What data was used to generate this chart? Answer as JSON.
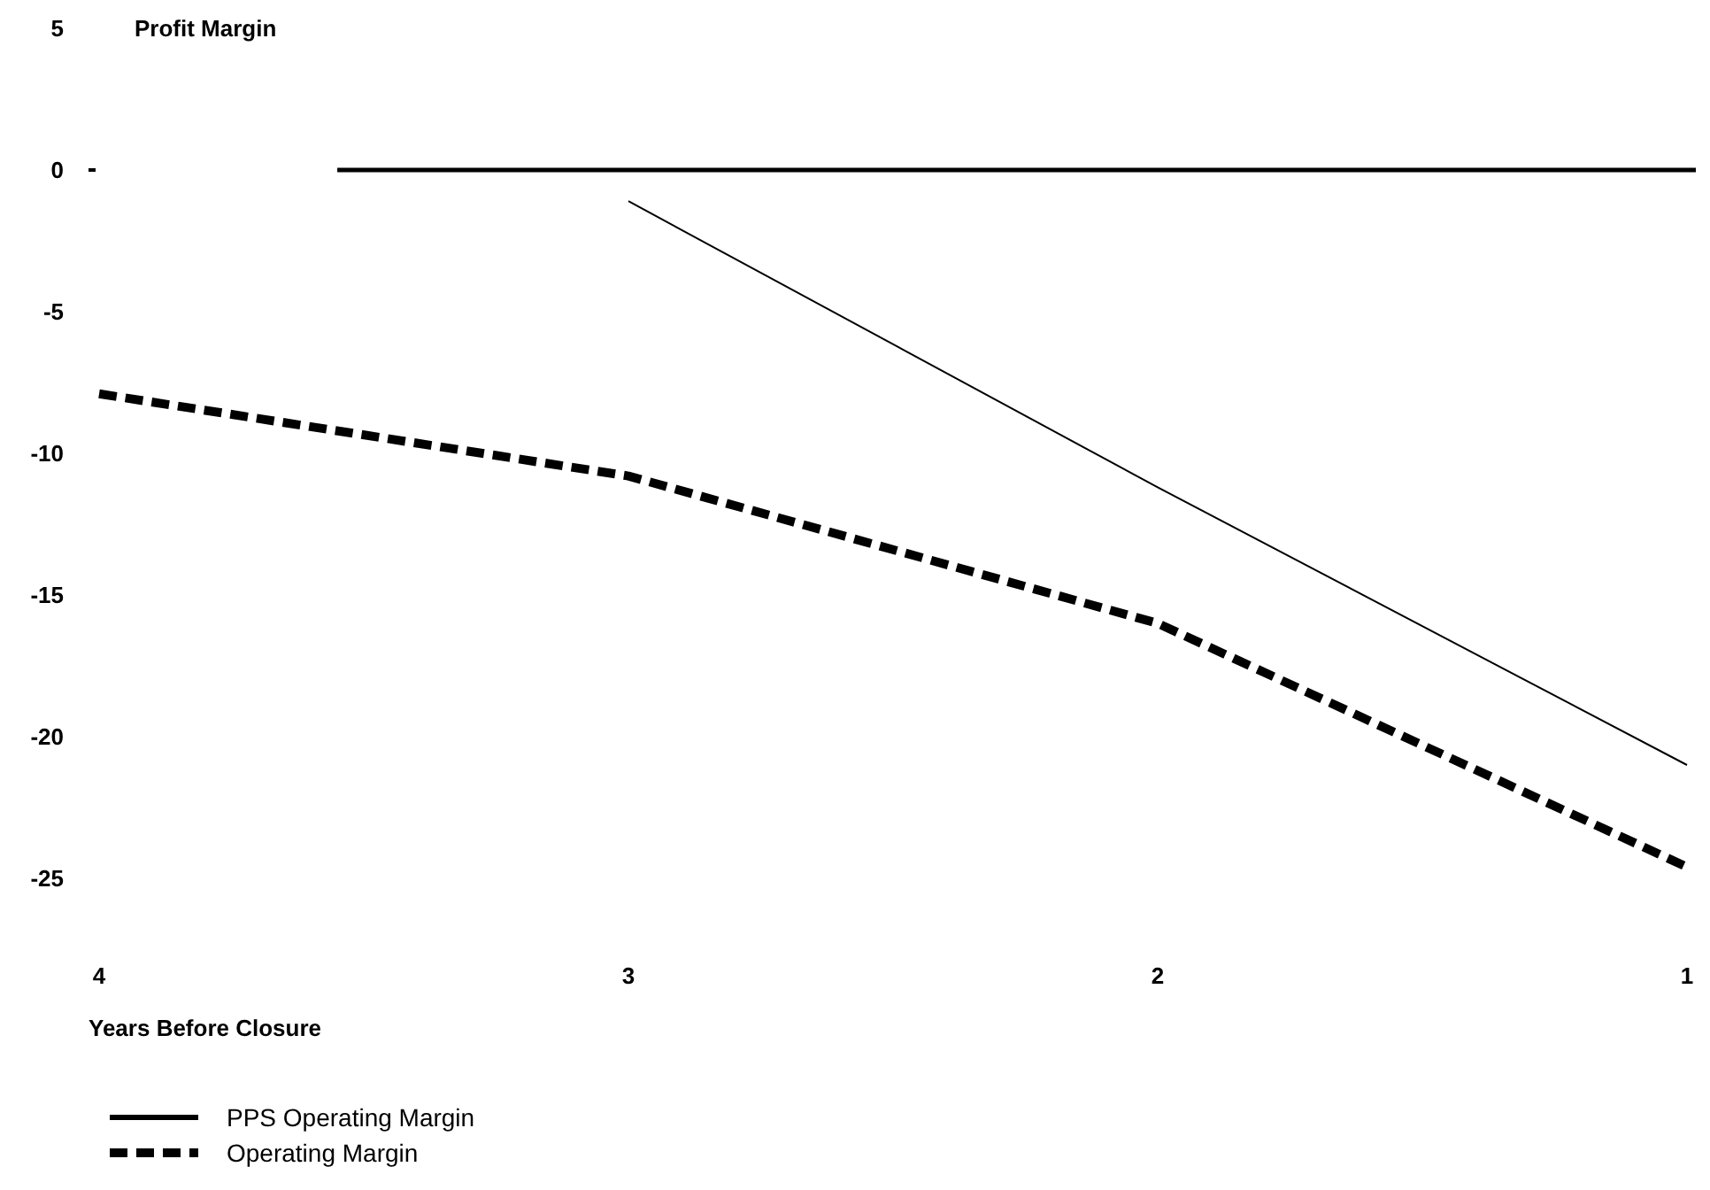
{
  "chart_data": {
    "type": "line",
    "ylabel": "Profit Margin",
    "xlabel": "Years Before Closure",
    "x": [
      4,
      3,
      2,
      1
    ],
    "xlim": [
      4,
      1
    ],
    "xticks": [
      4,
      3,
      2,
      1
    ],
    "ylim": [
      -25,
      5
    ],
    "yticks": [
      5,
      0,
      -5,
      -10,
      -15,
      -20,
      -25
    ],
    "series": [
      {
        "name": "PPS Operating Margin",
        "color": "#000000",
        "line_style": "solid",
        "x": [
          3,
          2,
          1
        ],
        "values": [
          -1.1,
          -11.2,
          -21
        ]
      },
      {
        "name": "Operating Margin",
        "color": "#000000",
        "line_style": "dashed",
        "values": [
          -7.9,
          -10.8,
          -16,
          -24.6
        ]
      }
    ],
    "ref_lines": [
      {
        "axis": "y",
        "value": 0,
        "color": "#000000"
      }
    ],
    "grid": false,
    "legend": "bottom left",
    "marker": "none"
  }
}
